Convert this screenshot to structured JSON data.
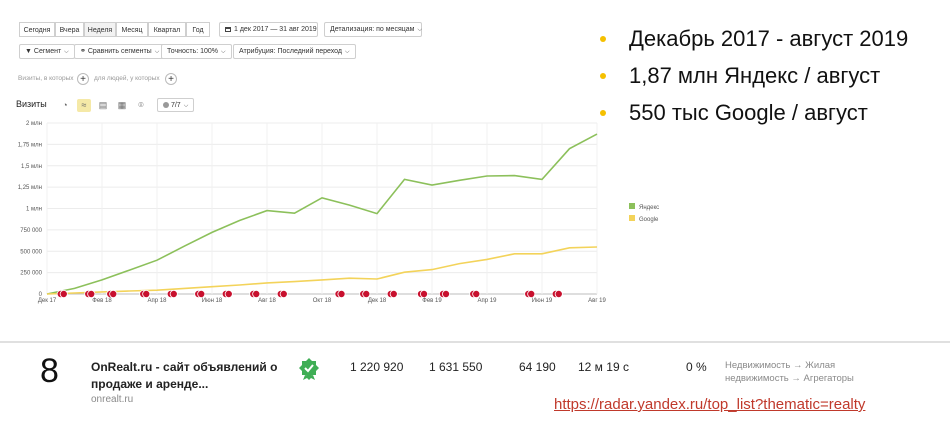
{
  "toolbar": {
    "periods": [
      "Сегодня",
      "Вчера",
      "Неделя",
      "Месяц",
      "Квартал",
      "Год"
    ],
    "active_period": "Неделя",
    "date_range": "1 дек 2017 — 31 авг 2019",
    "detail": "Детализация: по месяцам"
  },
  "filters": {
    "segment": "Сегмент",
    "compare": "Сравнить сегменты",
    "accuracy": "Точность: 100%",
    "attribution": "Атрибуция: Последний переход"
  },
  "segments": {
    "left": "Визиты, в которых",
    "right": "для людей, у которых"
  },
  "viz": {
    "title": "Визиты",
    "series_count": "7/7"
  },
  "chart_data": {
    "type": "line",
    "x": [
      "Дек 17",
      "Янв 18",
      "Фев 18",
      "Мар 18",
      "Апр 18",
      "Май 18",
      "Июн 18",
      "Июл 18",
      "Авг 18",
      "Сен 18",
      "Окт 18",
      "Ноя 18",
      "Дек 18",
      "Янв 19",
      "Фев 19",
      "Мар 19",
      "Апр 19",
      "Май 19",
      "Июн 19",
      "Июл 19",
      "Авг 19"
    ],
    "x_tick_labels": [
      "Дек 17",
      "Фев 18",
      "Апр 18",
      "Июн 18",
      "Авг 18",
      "Окт 18",
      "Дек 18",
      "Фев 19",
      "Апр 19",
      "Июн 19",
      "Авг 19"
    ],
    "y_tick_labels": [
      "0",
      "250 000",
      "500 000",
      "750 000",
      "1 млн",
      "1,25 млн",
      "1,5 млн",
      "1,75 млн",
      "2 млн"
    ],
    "ylim": [
      0,
      2000000
    ],
    "series": [
      {
        "name": "Яндекс",
        "color": "#8cc05b",
        "values": [
          0,
          65000,
          165000,
          280000,
          395000,
          560000,
          720000,
          860000,
          975000,
          945000,
          1125000,
          1040000,
          940000,
          1340000,
          1275000,
          1330000,
          1380000,
          1385000,
          1340000,
          1700000,
          1870000
        ]
      },
      {
        "name": "Google",
        "color": "#f3d35a",
        "values": [
          0,
          12000,
          25000,
          35000,
          45000,
          65000,
          85000,
          105000,
          130000,
          145000,
          165000,
          185000,
          175000,
          255000,
          285000,
          355000,
          405000,
          470000,
          470000,
          540000,
          550000
        ]
      }
    ],
    "annotations_x": [
      0.5,
      1.5,
      2.3,
      3.5,
      4.5,
      5.5,
      6.5,
      7.5,
      8.5,
      10.6,
      11.5,
      12.5,
      13.6,
      14.4,
      15.5,
      17.5,
      18.5
    ],
    "grid": true,
    "legend": "right"
  },
  "bullets": [
    "Декабрь 2017 - август 2019",
    "1,87 млн Яндекс / август",
    "550 тыс Google / август"
  ],
  "site": {
    "rank": "8",
    "name": "OnRealt.ru - сайт объявлений о продаже и аренде...",
    "url": "onrealt.ru",
    "metrics": [
      "1 220 920",
      "1 631 550",
      "64 190",
      "12 м 19 с",
      "0 %"
    ],
    "categories": [
      "Недвижимость → Жилая",
      "недвижимость → Агрегаторы"
    ]
  },
  "source_link": "https://radar.yandex.ru/top_list?thematic=realty",
  "colors": {
    "accent_bullet": "#f5c000",
    "link": "#c0392b",
    "badge_green": "#3fae55"
  }
}
